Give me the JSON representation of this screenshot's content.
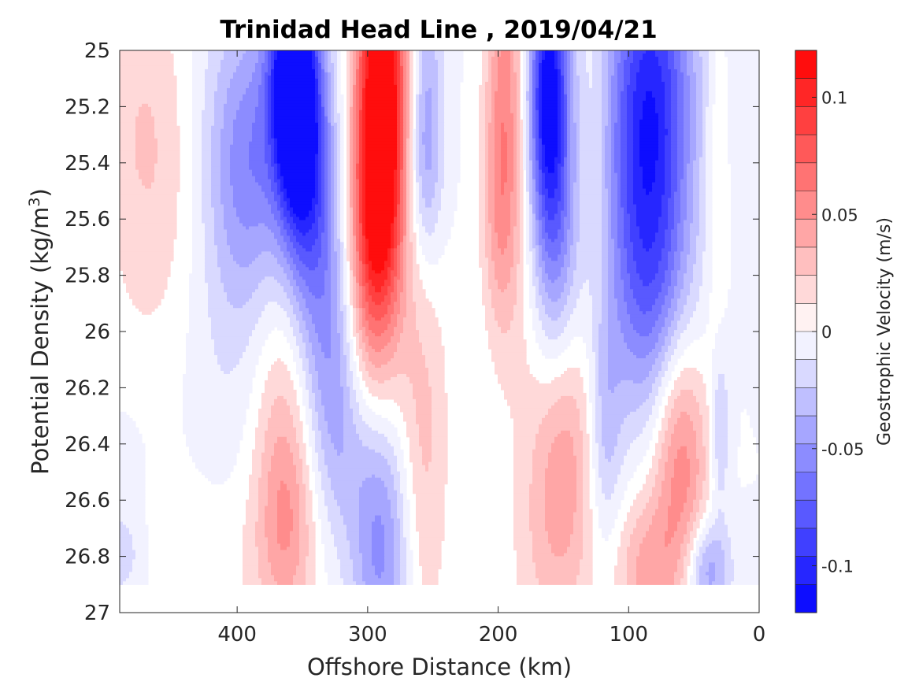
{
  "chart_data": {
    "type": "heatmap",
    "title": "Trinidad Head Line , 2019/04/21",
    "xlabel": "Offshore Distance (km)",
    "ylabel_prefix": "Potential Density (kg/m",
    "ylabel_sup": "3",
    "ylabel_suffix": ")",
    "colorbar_label": "Geostrophic Velocity (m/s)",
    "xlim": [
      490,
      0
    ],
    "ylim": [
      25,
      27
    ],
    "x_reversed": true,
    "y_reversed": true,
    "xticks": [
      400,
      300,
      200,
      100,
      0
    ],
    "xtick_labels": [
      "400",
      "300",
      "200",
      "100",
      "0"
    ],
    "yticks": [
      25,
      25.2,
      25.4,
      25.6,
      25.8,
      26,
      26.2,
      26.4,
      26.6,
      26.8,
      27
    ],
    "ytick_labels": [
      "25",
      "25.2",
      "25.4",
      "25.6",
      "25.8",
      "26",
      "26.2",
      "26.4",
      "26.6",
      "26.8",
      "27"
    ],
    "clim": [
      -0.12,
      0.12
    ],
    "colorbar_levels": 20,
    "colorbar_ticks": [
      0.1,
      0.05,
      0,
      -0.05,
      -0.1
    ],
    "colorbar_tick_labels": [
      "0.1",
      "0.05",
      "0",
      "-0.05",
      "-0.1"
    ],
    "colormap": {
      "negative": "#0000ff",
      "zero": "#ffffff",
      "positive": "#ff0000"
    },
    "data_sigma_max": 26.9,
    "grid": false,
    "features": [
      {
        "x": 180,
        "y": 25.0,
        "sx": 12,
        "sy": 0.85,
        "v": 0.018
      },
      {
        "x": 475,
        "y": 25.25,
        "sx": 25,
        "sy": 0.4,
        "v": 0.018
      },
      {
        "x": 455,
        "y": 25.55,
        "sx": 25,
        "sy": 0.45,
        "v": 0.012
      },
      {
        "x": 490,
        "y": 26.2,
        "sx": 25,
        "sy": 0.3,
        "v": 0.005
      },
      {
        "x": 488,
        "y": 26.6,
        "sx": 18,
        "sy": 0.3,
        "v": -0.012
      },
      {
        "x": 385,
        "y": 25.25,
        "sx": 30,
        "sy": 0.35,
        "v": -0.03
      },
      {
        "x": 392,
        "y": 25.5,
        "sx": 20,
        "sy": 0.35,
        "v": -0.03
      },
      {
        "x": 412,
        "y": 26.0,
        "sx": 25,
        "sy": 0.5,
        "v": -0.01
      },
      {
        "x": 358,
        "y": 25.05,
        "sx": 12,
        "sy": 0.3,
        "v": -0.11
      },
      {
        "x": 350,
        "y": 25.35,
        "sx": 13,
        "sy": 0.35,
        "v": -0.08
      },
      {
        "x": 335,
        "y": 25.8,
        "sx": 14,
        "sy": 0.45,
        "v": -0.04
      },
      {
        "x": 322,
        "y": 26.2,
        "sx": 13,
        "sy": 0.35,
        "v": -0.025
      },
      {
        "x": 289,
        "y": 25.1,
        "sx": 14,
        "sy": 0.45,
        "v": 0.12
      },
      {
        "x": 293,
        "y": 25.55,
        "sx": 14,
        "sy": 0.35,
        "v": 0.06
      },
      {
        "x": 298,
        "y": 25.85,
        "sx": 15,
        "sy": 0.3,
        "v": 0.03
      },
      {
        "x": 255,
        "y": 25.2,
        "sx": 9,
        "sy": 0.35,
        "v": -0.04
      },
      {
        "x": 258,
        "y": 25.45,
        "sx": 10,
        "sy": 0.2,
        "v": -0.015
      },
      {
        "x": 196,
        "y": 25.2,
        "sx": 10,
        "sy": 0.5,
        "v": 0.045
      },
      {
        "x": 200,
        "y": 25.6,
        "sx": 10,
        "sy": 0.3,
        "v": 0.02
      },
      {
        "x": 163,
        "y": 25.1,
        "sx": 11,
        "sy": 0.35,
        "v": -0.09
      },
      {
        "x": 158,
        "y": 25.45,
        "sx": 12,
        "sy": 0.45,
        "v": -0.055
      },
      {
        "x": 150,
        "y": 25.85,
        "sx": 14,
        "sy": 0.3,
        "v": -0.015
      },
      {
        "x": 125,
        "y": 25.3,
        "sx": 8,
        "sy": 0.4,
        "v": 0.01
      },
      {
        "x": 82,
        "y": 25.1,
        "sx": 24,
        "sy": 0.45,
        "v": -0.075
      },
      {
        "x": 88,
        "y": 25.55,
        "sx": 22,
        "sy": 0.45,
        "v": -0.05
      },
      {
        "x": 80,
        "y": 25.95,
        "sx": 22,
        "sy": 0.3,
        "v": -0.03
      },
      {
        "x": 33,
        "y": 25.4,
        "sx": 6,
        "sy": 0.5,
        "v": 0.015
      },
      {
        "x": 365,
        "y": 26.35,
        "sx": 17,
        "sy": 0.4,
        "v": 0.028
      },
      {
        "x": 362,
        "y": 26.7,
        "sx": 15,
        "sy": 0.25,
        "v": 0.028
      },
      {
        "x": 395,
        "y": 26.85,
        "sx": 40,
        "sy": 0.25,
        "v": 0.01
      },
      {
        "x": 462,
        "y": 26.75,
        "sx": 25,
        "sy": 0.2,
        "v": 0.008
      },
      {
        "x": 490,
        "y": 26.8,
        "sx": 15,
        "sy": 0.1,
        "v": -0.015
      },
      {
        "x": 298,
        "y": 26.45,
        "sx": 24,
        "sy": 0.2,
        "v": -0.012
      },
      {
        "x": 290,
        "y": 26.8,
        "sx": 16,
        "sy": 0.28,
        "v": -0.05
      },
      {
        "x": 258,
        "y": 26.4,
        "sx": 14,
        "sy": 0.5,
        "v": 0.03
      },
      {
        "x": 150,
        "y": 26.35,
        "sx": 17,
        "sy": 0.35,
        "v": 0.04
      },
      {
        "x": 158,
        "y": 26.8,
        "sx": 22,
        "sy": 0.3,
        "v": 0.02
      },
      {
        "x": 118,
        "y": 26.35,
        "sx": 9,
        "sy": 0.3,
        "v": -0.03
      },
      {
        "x": 62,
        "y": 26.35,
        "sx": 15,
        "sy": 0.3,
        "v": 0.045
      },
      {
        "x": 85,
        "y": 26.85,
        "sx": 18,
        "sy": 0.2,
        "v": 0.04
      },
      {
        "x": 55,
        "y": 26.65,
        "sx": 14,
        "sy": 0.3,
        "v": 0.02
      },
      {
        "x": 40,
        "y": 26.85,
        "sx": 12,
        "sy": 0.13,
        "v": -0.05
      },
      {
        "x": 30,
        "y": 26.35,
        "sx": 5,
        "sy": 0.2,
        "v": -0.03
      }
    ]
  }
}
